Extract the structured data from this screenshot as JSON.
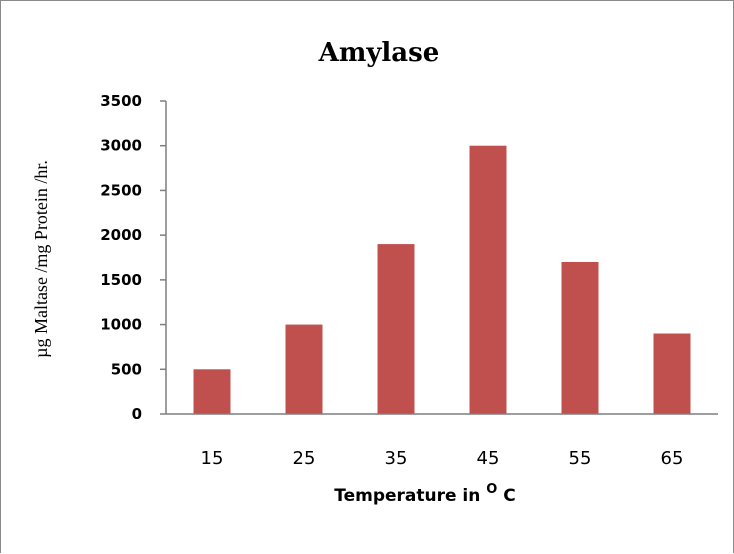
{
  "chart_data": {
    "type": "bar",
    "title": "Amylase",
    "ylabel": "µg Maltase /mg Protein /hr.",
    "xlabel": {
      "prefix": "Temperature in ",
      "superscript": "O",
      "suffix": " C"
    },
    "categories": [
      "15",
      "25",
      "35",
      "45",
      "55",
      "65"
    ],
    "values": [
      500,
      1000,
      1900,
      3000,
      1700,
      900
    ],
    "ylim": [
      0,
      3500
    ],
    "yticks": [
      "0",
      "500",
      "1000",
      "1500",
      "2000",
      "2500",
      "3000",
      "3500"
    ],
    "grid": false,
    "legend": "none",
    "bar_color": "#C0504D"
  }
}
